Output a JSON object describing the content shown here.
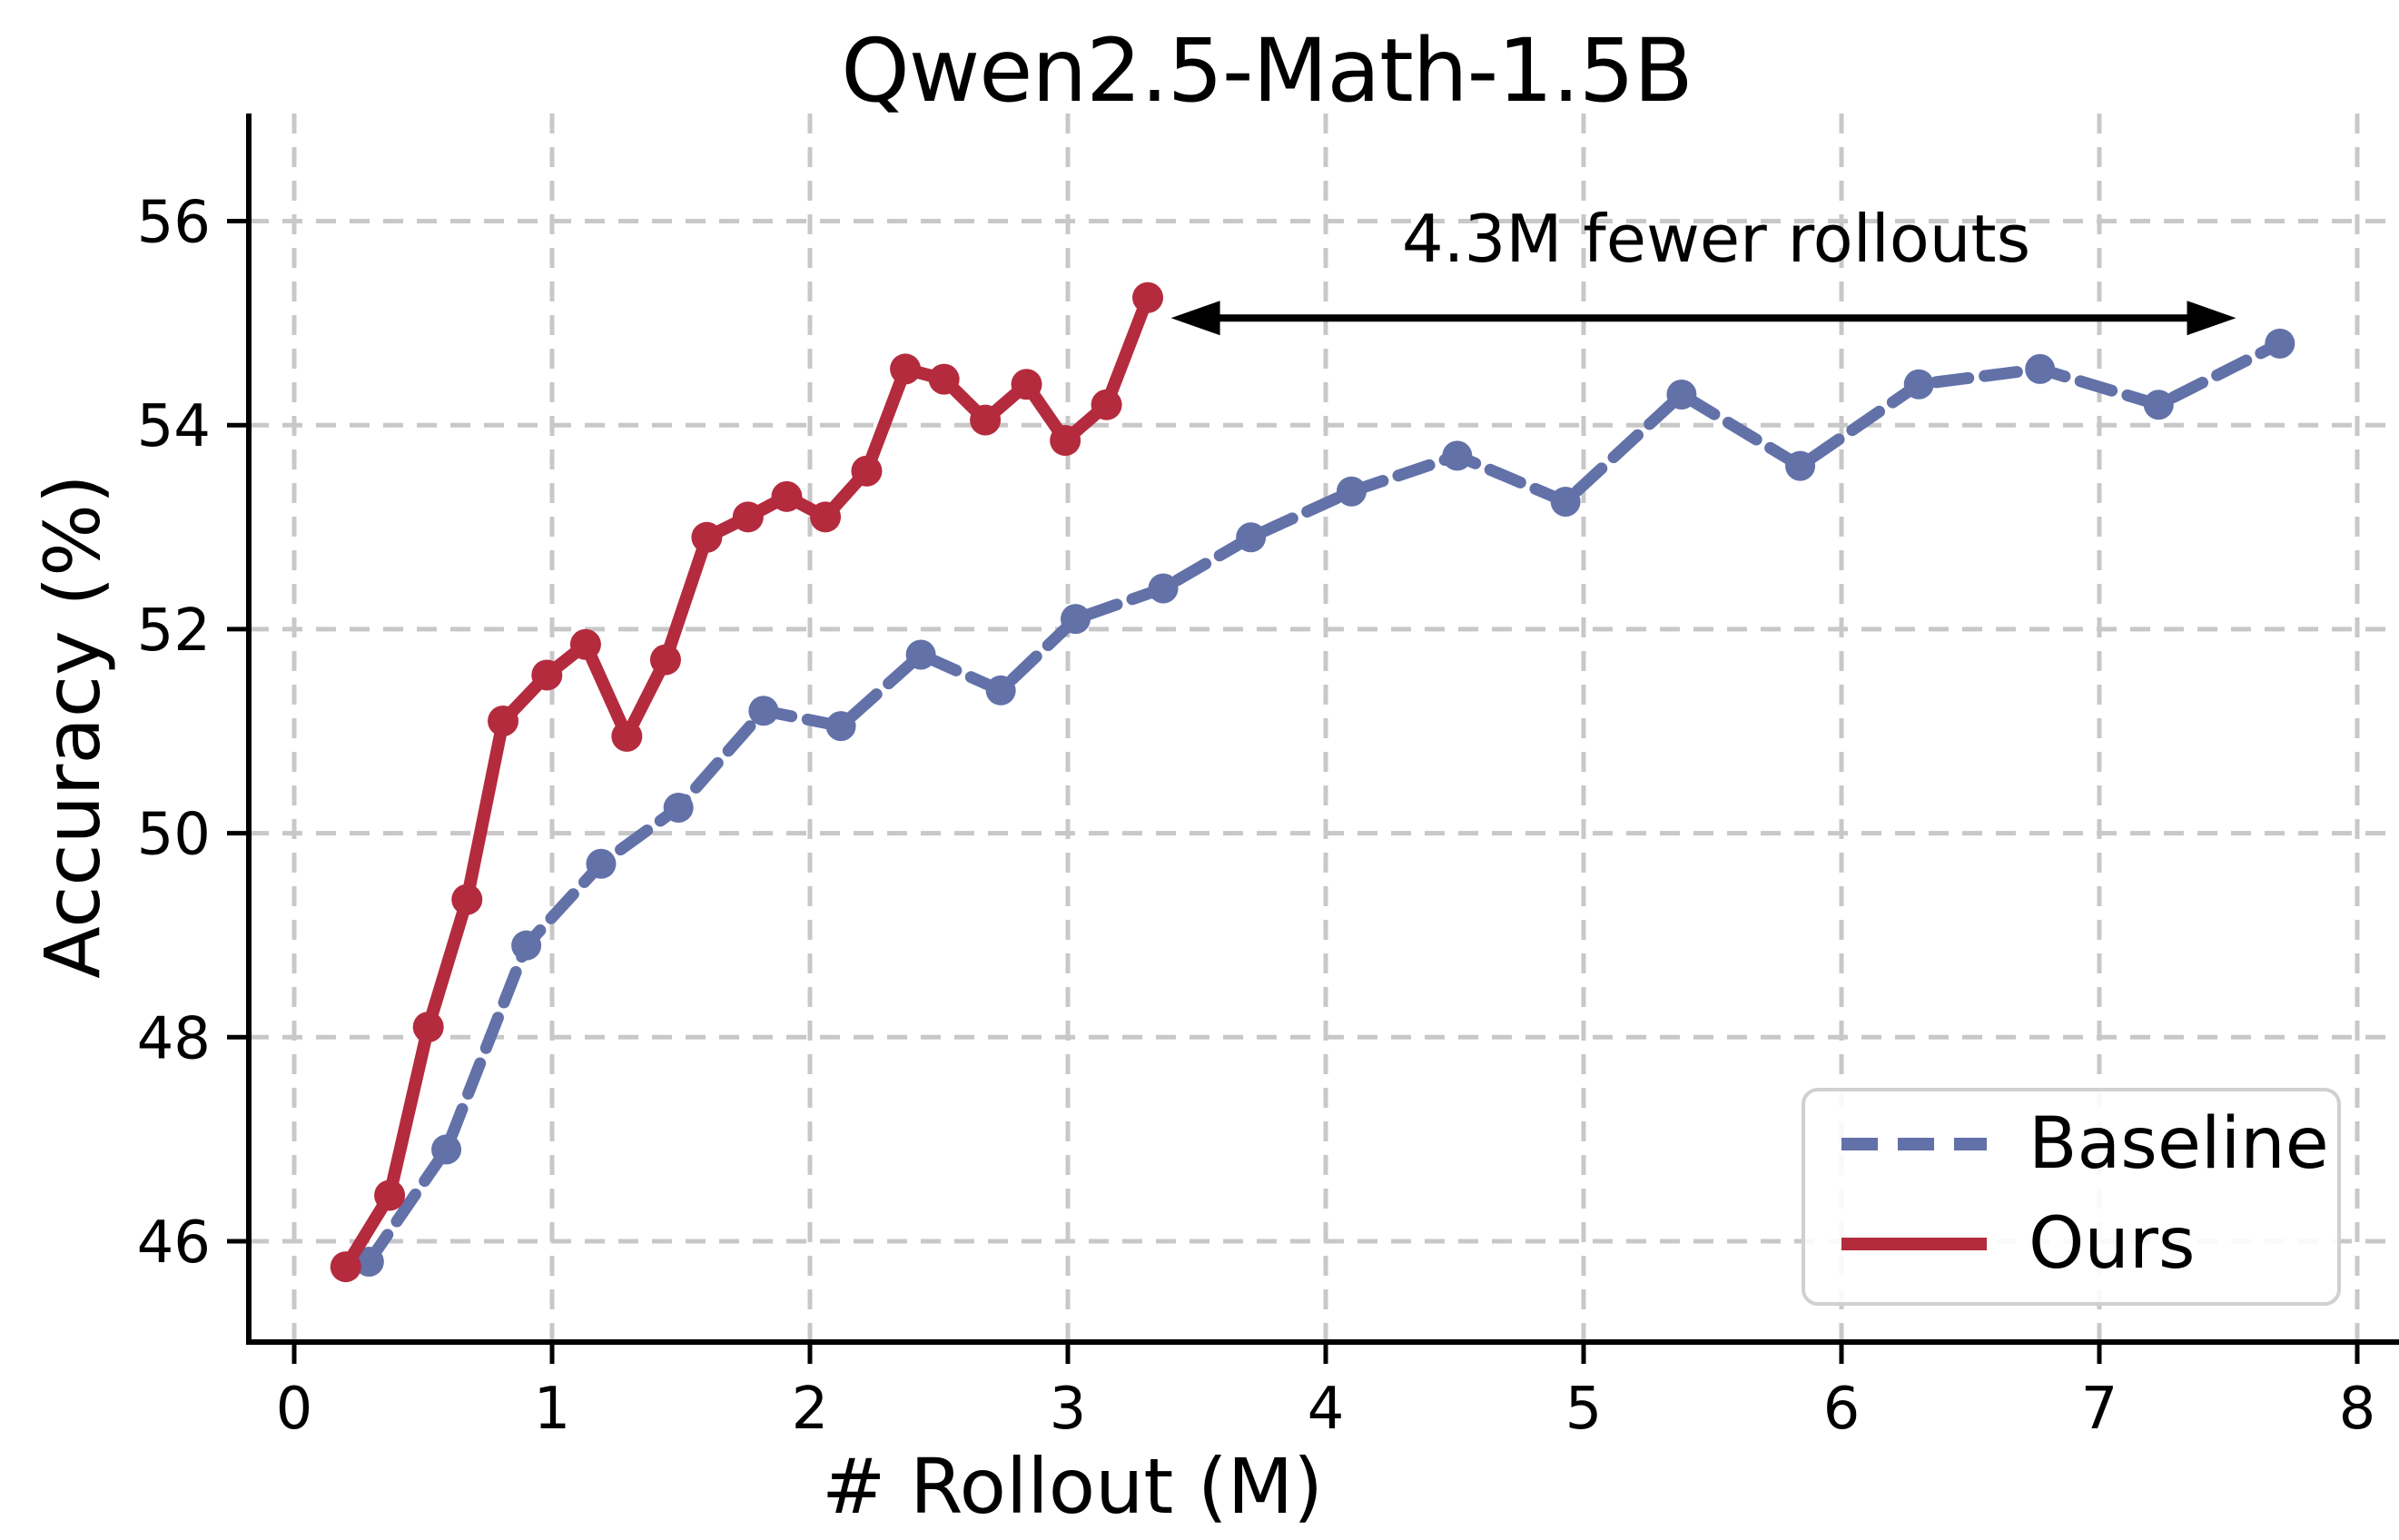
{
  "chart_data": {
    "type": "line",
    "title": "Qwen2.5-Math-1.5B",
    "xlabel": "# Rollout (M)",
    "ylabel": "Accuracy (%)",
    "xlim": [
      -0.18,
      8.16
    ],
    "ylim": [
      45.0,
      57.0
    ],
    "x_ticks": [
      0,
      1,
      2,
      3,
      4,
      5,
      6,
      7,
      8
    ],
    "y_ticks": [
      46,
      48,
      50,
      52,
      54,
      56
    ],
    "grid": true,
    "grid_color": "#c8c8c8",
    "legend_position": "lower right",
    "series": [
      {
        "name": "Baseline",
        "color": "#6271a8",
        "line_style": "dashed",
        "marker": "circle",
        "x": [
          0.29,
          0.59,
          0.9,
          1.19,
          1.49,
          1.82,
          2.12,
          2.43,
          2.74,
          3.03,
          3.37,
          3.71,
          4.1,
          4.51,
          4.93,
          5.38,
          5.84,
          6.3,
          6.77,
          7.23,
          7.7
        ],
        "y": [
          45.8,
          46.9,
          48.9,
          49.7,
          50.25,
          51.2,
          51.05,
          51.75,
          51.4,
          52.1,
          52.4,
          52.9,
          53.35,
          53.7,
          53.25,
          54.3,
          53.6,
          54.4,
          54.55,
          54.2,
          54.8
        ]
      },
      {
        "name": "Ours",
        "color": "#b42b3e",
        "line_style": "solid",
        "marker": "circle",
        "x": [
          0.2,
          0.37,
          0.52,
          0.67,
          0.81,
          0.98,
          1.13,
          1.29,
          1.44,
          1.6,
          1.76,
          1.91,
          2.06,
          2.22,
          2.37,
          2.52,
          2.68,
          2.84,
          2.99,
          3.15,
          3.31
        ],
        "y": [
          45.75,
          46.45,
          48.1,
          49.35,
          51.1,
          51.55,
          51.85,
          50.95,
          51.7,
          52.9,
          53.1,
          53.3,
          53.1,
          53.55,
          54.55,
          54.45,
          54.05,
          54.4,
          53.85,
          54.2,
          55.25
        ]
      }
    ],
    "annotation": {
      "text": "4.3M fewer rollouts",
      "arrow_from_M": 3.4,
      "arrow_to_M": 7.53,
      "arrow_y_acc": 55.05,
      "arrow_color": "#000000"
    }
  }
}
